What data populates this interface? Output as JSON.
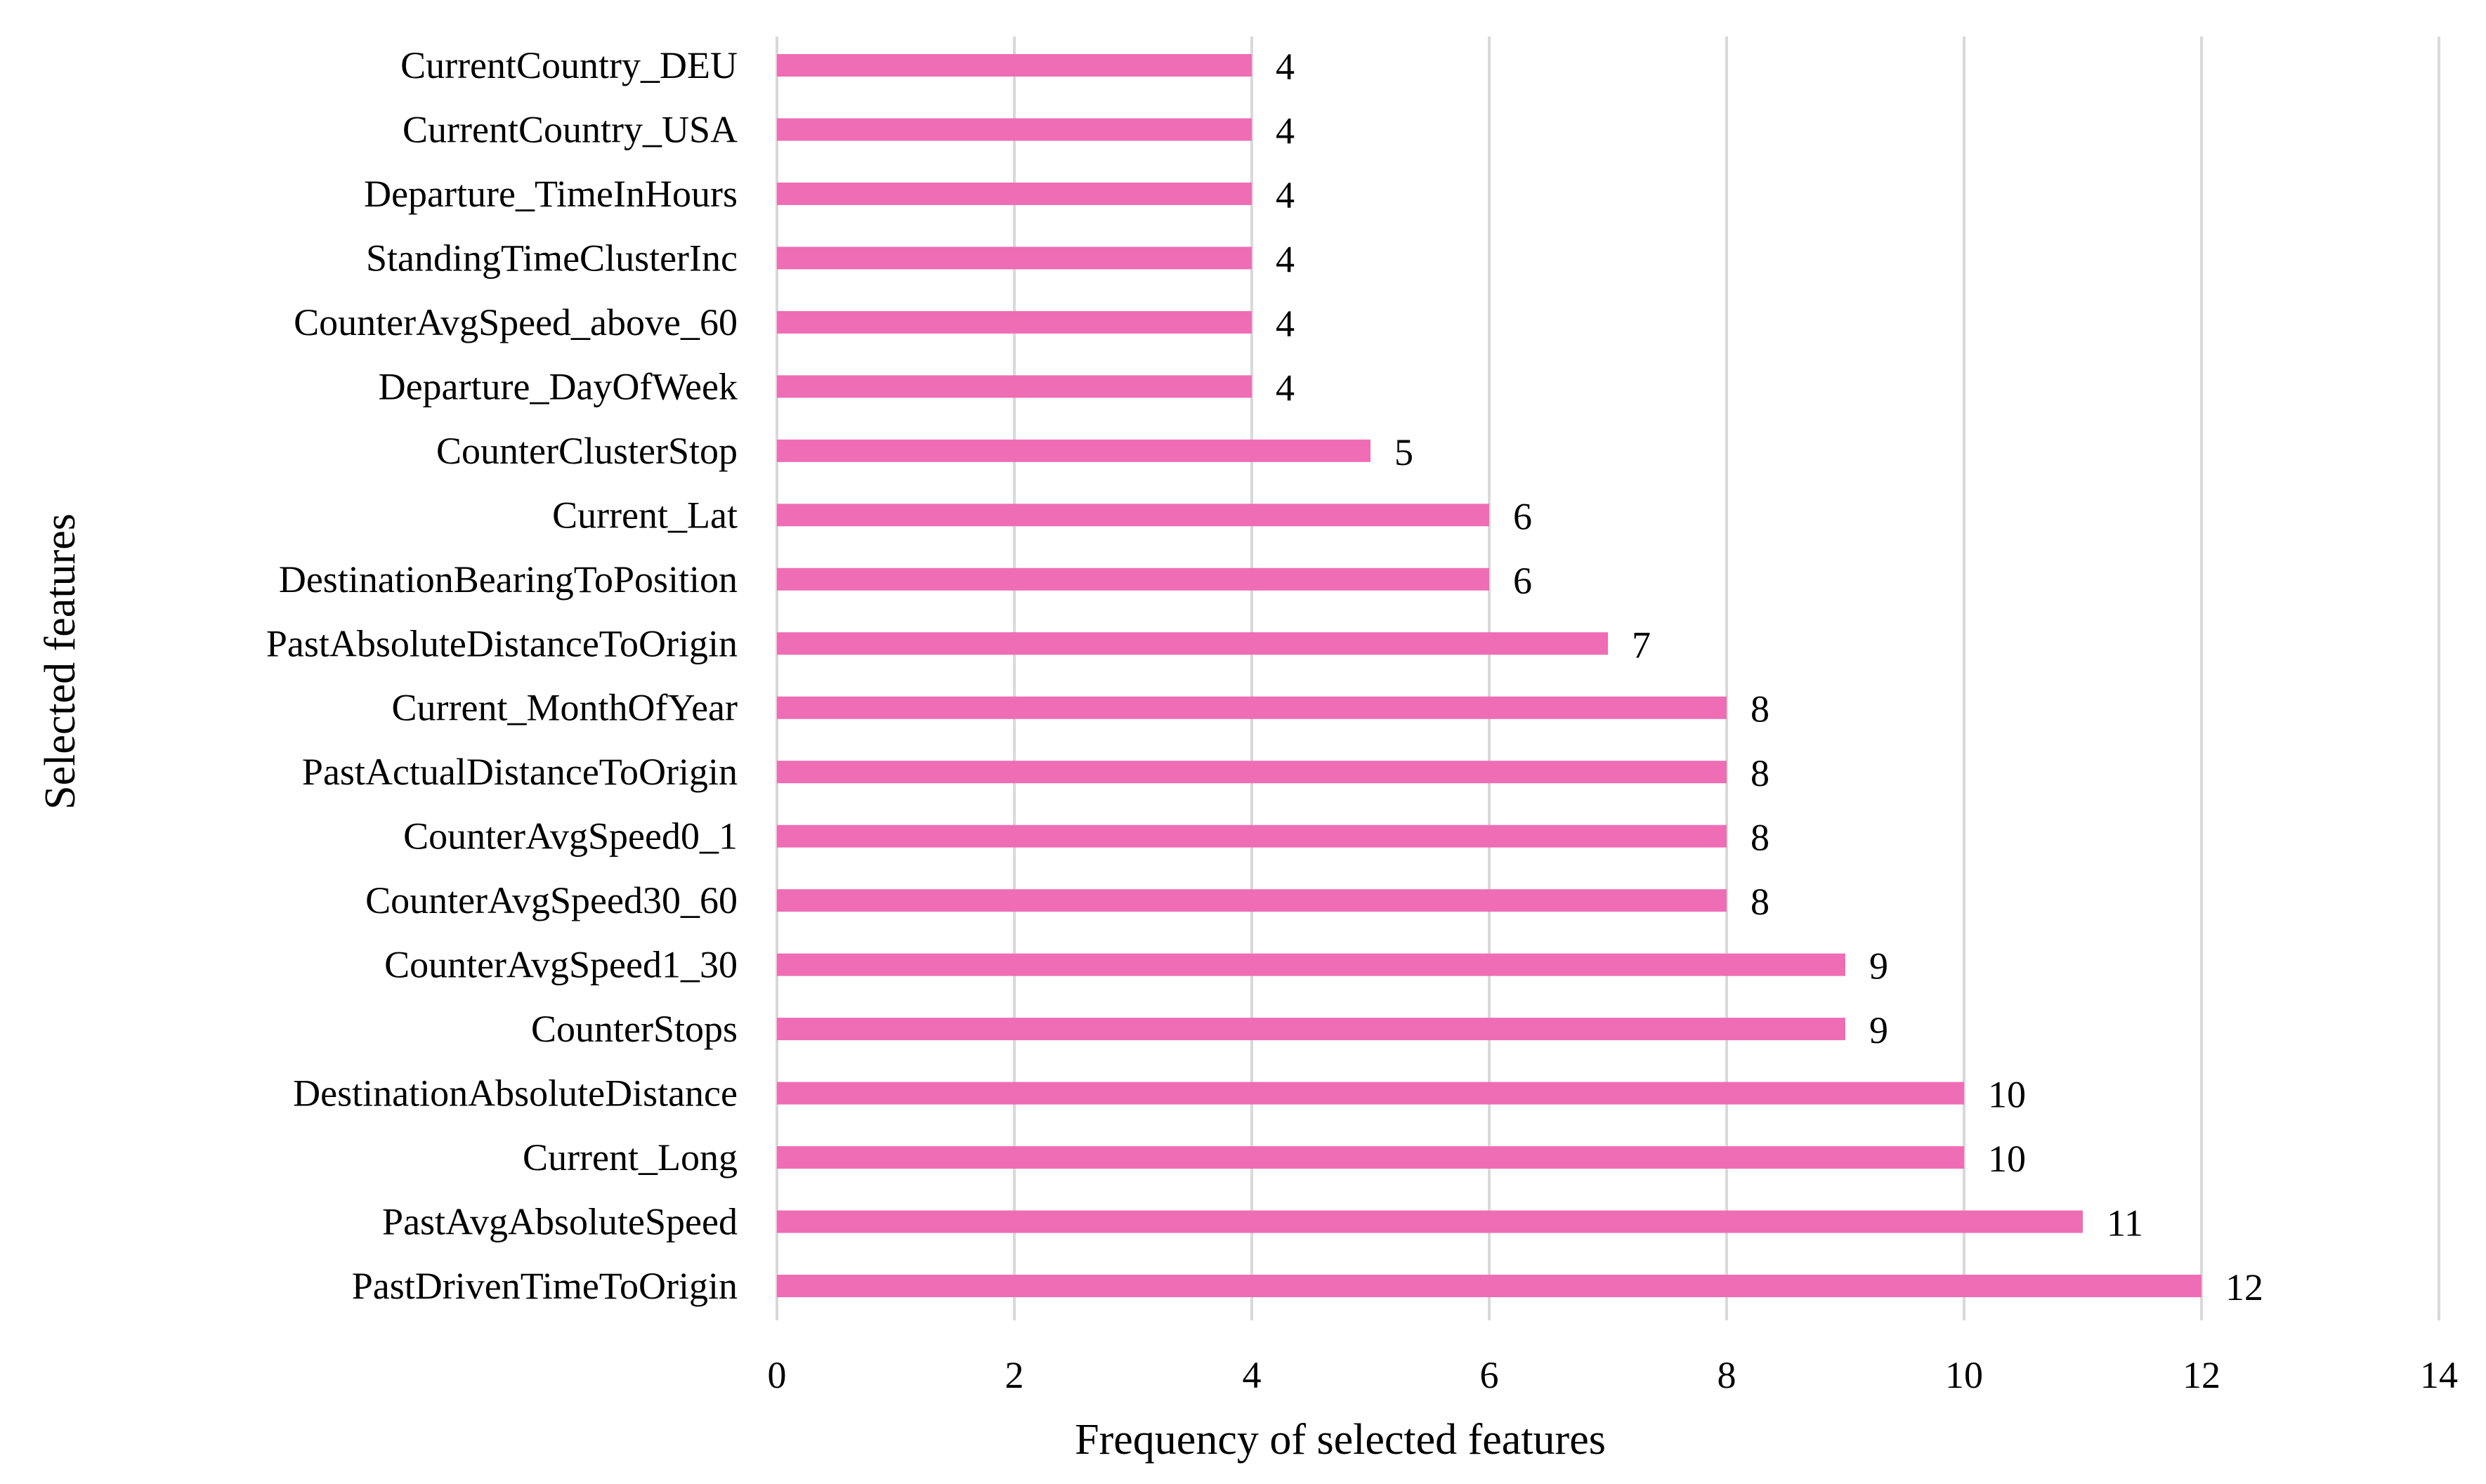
{
  "chart_data": {
    "type": "bar",
    "orientation": "horizontal",
    "title": "",
    "xlabel": "Frequency of selected features",
    "ylabel": "Selected features",
    "xlim": [
      0,
      14
    ],
    "xticks": [
      0,
      2,
      4,
      6,
      8,
      10,
      12,
      14
    ],
    "grid": "vertical",
    "bar_color": "#ee6db4",
    "categories": [
      "CurrentCountry_DEU",
      "CurrentCountry_USA",
      "Departure_TimeInHours",
      "StandingTimeClusterInc",
      "CounterAvgSpeed_above_60",
      "Departure_DayOfWeek",
      "CounterClusterStop",
      "Current_Lat",
      "DestinationBearingToPosition",
      "PastAbsoluteDistanceToOrigin",
      "Current_MonthOfYear",
      "PastActualDistanceToOrigin",
      "CounterAvgSpeed0_1",
      "CounterAvgSpeed30_60",
      "CounterAvgSpeed1_30",
      "CounterStops",
      "DestinationAbsoluteDistance",
      "Current_Long",
      "PastAvgAbsoluteSpeed",
      "PastDrivenTimeToOrigin"
    ],
    "values": [
      4,
      4,
      4,
      4,
      4,
      4,
      5,
      6,
      6,
      7,
      8,
      8,
      8,
      8,
      9,
      9,
      10,
      10,
      11,
      12
    ]
  }
}
